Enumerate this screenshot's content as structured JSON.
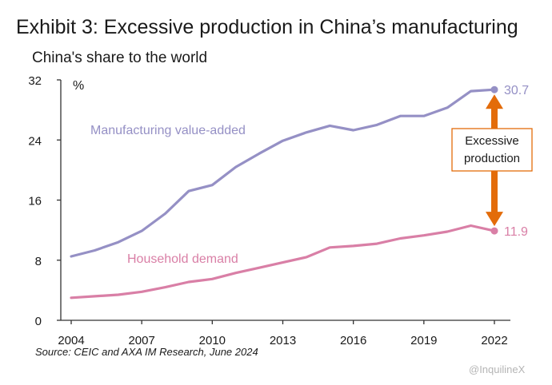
{
  "title": "Exhibit 3: Excessive production in China’s manufacturing",
  "subtitle": "China's share to the world",
  "source": "Source: CEIC and AXA IM Research, June 2024",
  "watermark": "@InquilineX",
  "chart_data": {
    "type": "line",
    "yunit": "%",
    "ylim": [
      0,
      32
    ],
    "yticks": [
      0,
      8,
      16,
      24,
      32
    ],
    "xlim": [
      2004,
      2022
    ],
    "xticks": [
      2004,
      2007,
      2010,
      2013,
      2016,
      2019,
      2022
    ],
    "grid": false,
    "series": [
      {
        "name": "Manufacturing value-added",
        "color": "#9590c5",
        "x": [
          2004,
          2005,
          2006,
          2007,
          2008,
          2009,
          2010,
          2011,
          2012,
          2013,
          2014,
          2015,
          2016,
          2017,
          2018,
          2019,
          2020,
          2021,
          2022
        ],
        "values": [
          8.5,
          9.3,
          10.4,
          11.9,
          14.2,
          17.2,
          18.0,
          20.4,
          22.2,
          23.9,
          25.0,
          25.9,
          25.3,
          26.0,
          27.2,
          27.2,
          28.3,
          30.5,
          30.7
        ],
        "end_label": "30.7"
      },
      {
        "name": "Household demand",
        "color": "#d97fa6",
        "x": [
          2004,
          2005,
          2006,
          2007,
          2008,
          2009,
          2010,
          2011,
          2012,
          2013,
          2014,
          2015,
          2016,
          2017,
          2018,
          2019,
          2020,
          2021,
          2022
        ],
        "values": [
          3.0,
          3.2,
          3.4,
          3.8,
          4.4,
          5.1,
          5.5,
          6.3,
          7.0,
          7.7,
          8.4,
          9.7,
          9.9,
          10.2,
          10.9,
          11.3,
          11.8,
          12.6,
          11.9
        ],
        "end_label": "11.9"
      }
    ],
    "annotation": {
      "text_lines": [
        "Excessive",
        "production"
      ],
      "arrow_color": "#e36c0a",
      "from_value": 30.7,
      "to_value": 11.9
    }
  }
}
